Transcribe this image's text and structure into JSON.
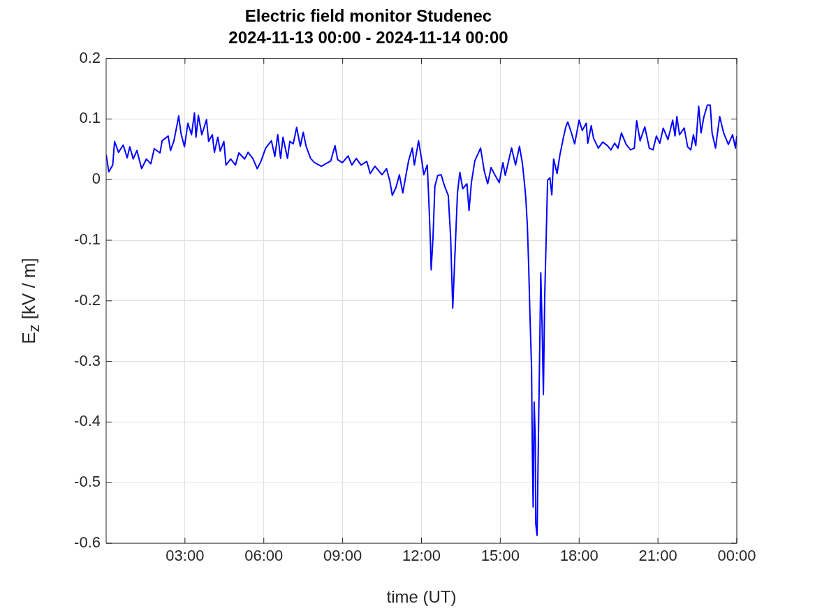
{
  "chart_data": {
    "type": "line",
    "title": "Electric field monitor Studenec",
    "subtitle": "2024-11-13 00:00 - 2024-11-14 00:00",
    "xlabel": "time (UT)",
    "ylabel": "E$_{z}$ [kV / m]",
    "xlim": [
      0,
      24
    ],
    "xticks": [
      {
        "value": 3,
        "label": "03:00"
      },
      {
        "value": 6,
        "label": "06:00"
      },
      {
        "value": 9,
        "label": "09:00"
      },
      {
        "value": 12,
        "label": "12:00"
      },
      {
        "value": 15,
        "label": "15:00"
      },
      {
        "value": 18,
        "label": "18:00"
      },
      {
        "value": 21,
        "label": "21:00"
      },
      {
        "value": 24,
        "label": "00:00"
      }
    ],
    "ylim": [
      -0.6,
      0.2
    ],
    "yticks": [
      -0.6,
      -0.5,
      -0.4,
      -0.3,
      -0.2,
      -0.1,
      0,
      0.1,
      0.2
    ],
    "grid": true,
    "legend": false,
    "marker": "none",
    "line_style": "solid",
    "series": [
      {
        "color": "#0000ff",
        "x": [
          0,
          0.1,
          0.25,
          0.32,
          0.47,
          0.65,
          0.8,
          0.9,
          1.03,
          1.17,
          1.35,
          1.53,
          1.7,
          1.83,
          2.05,
          2.13,
          2.36,
          2.45,
          2.58,
          2.71,
          2.76,
          2.85,
          2.98,
          3.11,
          3.25,
          3.36,
          3.42,
          3.51,
          3.64,
          3.82,
          3.9,
          4.04,
          4.12,
          4.25,
          4.34,
          4.48,
          4.56,
          4.74,
          4.92,
          5.05,
          5.27,
          5.4,
          5.58,
          5.75,
          5.89,
          6.07,
          6.29,
          6.42,
          6.53,
          6.64,
          6.73,
          6.9,
          6.99,
          7.12,
          7.25,
          7.39,
          7.5,
          7.61,
          7.78,
          7.93,
          8.19,
          8.55,
          8.71,
          8.81,
          8.99,
          9.21,
          9.35,
          9.52,
          9.7,
          9.92,
          10.05,
          10.23,
          10.5,
          10.67,
          10.8,
          10.89,
          11.03,
          11.16,
          11.29,
          11.42,
          11.51,
          11.65,
          11.73,
          11.89,
          12.0,
          12.09,
          12.22,
          12.28,
          12.34,
          12.37,
          12.44,
          12.51,
          12.62,
          12.75,
          12.88,
          13.02,
          13.11,
          13.19,
          13.28,
          13.37,
          13.46,
          13.57,
          13.73,
          13.81,
          13.9,
          14.03,
          14.25,
          14.39,
          14.52,
          14.65,
          14.79,
          14.96,
          15.1,
          15.19,
          15.36,
          15.43,
          15.58,
          15.73,
          15.84,
          15.92,
          15.97,
          16.03,
          16.08,
          16.13,
          16.19,
          16.22,
          16.25,
          16.29,
          16.33,
          16.35,
          16.4,
          16.45,
          16.49,
          16.54,
          16.59,
          16.64,
          16.69,
          16.75,
          16.8,
          16.89,
          16.96,
          17.03,
          17.16,
          17.27,
          17.4,
          17.5,
          17.57,
          17.7,
          17.83,
          18.0,
          18.12,
          18.27,
          18.33,
          18.46,
          18.55,
          18.73,
          18.9,
          19.08,
          19.21,
          19.35,
          19.48,
          19.61,
          19.79,
          19.96,
          20.1,
          20.19,
          20.32,
          20.5,
          20.67,
          20.81,
          20.94,
          21.07,
          21.2,
          21.38,
          21.56,
          21.65,
          21.72,
          21.82,
          22.0,
          22.13,
          22.25,
          22.35,
          22.44,
          22.55,
          22.64,
          22.75,
          22.88,
          22.99,
          23.06,
          23.19,
          23.35,
          23.5,
          23.68,
          23.84,
          23.95,
          24
        ],
        "values": [
          0.041,
          0.013,
          0.024,
          0.063,
          0.045,
          0.057,
          0.036,
          0.054,
          0.034,
          0.048,
          0.018,
          0.034,
          0.026,
          0.051,
          0.044,
          0.064,
          0.072,
          0.048,
          0.064,
          0.093,
          0.105,
          0.076,
          0.054,
          0.093,
          0.074,
          0.11,
          0.07,
          0.106,
          0.074,
          0.099,
          0.063,
          0.074,
          0.045,
          0.07,
          0.047,
          0.063,
          0.024,
          0.034,
          0.024,
          0.044,
          0.034,
          0.045,
          0.035,
          0.018,
          0.03,
          0.052,
          0.064,
          0.038,
          0.074,
          0.035,
          0.07,
          0.035,
          0.063,
          0.059,
          0.086,
          0.055,
          0.078,
          0.055,
          0.035,
          0.028,
          0.022,
          0.031,
          0.056,
          0.033,
          0.028,
          0.039,
          0.024,
          0.035,
          0.024,
          0.03,
          0.01,
          0.022,
          0.008,
          0.018,
          -0.003,
          -0.026,
          -0.013,
          0.008,
          -0.022,
          0.01,
          0.031,
          0.052,
          0.024,
          0.064,
          0.035,
          0.008,
          0.024,
          -0.034,
          -0.103,
          -0.149,
          -0.095,
          -0.011,
          0.007,
          0.008,
          -0.011,
          -0.026,
          -0.095,
          -0.212,
          -0.118,
          -0.022,
          0.012,
          -0.015,
          -0.007,
          -0.051,
          -0.005,
          0.031,
          0.052,
          0.014,
          -0.007,
          0.02,
          0.008,
          -0.005,
          0.028,
          0.007,
          0.039,
          0.052,
          0.024,
          0.055,
          0.027,
          -0.006,
          -0.03,
          -0.076,
          -0.142,
          -0.226,
          -0.31,
          -0.451,
          -0.54,
          -0.367,
          -0.428,
          -0.568,
          -0.587,
          -0.428,
          -0.31,
          -0.154,
          -0.24,
          -0.355,
          -0.194,
          -0.09,
          -0.001,
          0.003,
          -0.025,
          0.034,
          0.01,
          0.041,
          0.069,
          0.088,
          0.095,
          0.078,
          0.059,
          0.098,
          0.081,
          0.093,
          0.06,
          0.089,
          0.068,
          0.052,
          0.062,
          0.056,
          0.049,
          0.06,
          0.052,
          0.077,
          0.058,
          0.049,
          0.052,
          0.097,
          0.064,
          0.087,
          0.052,
          0.049,
          0.072,
          0.06,
          0.085,
          0.066,
          0.098,
          0.072,
          0.104,
          0.074,
          0.085,
          0.054,
          0.049,
          0.074,
          0.056,
          0.121,
          0.077,
          0.104,
          0.123,
          0.123,
          0.077,
          0.052,
          0.104,
          0.077,
          0.058,
          0.074,
          0.052,
          0.072
        ]
      }
    ]
  }
}
